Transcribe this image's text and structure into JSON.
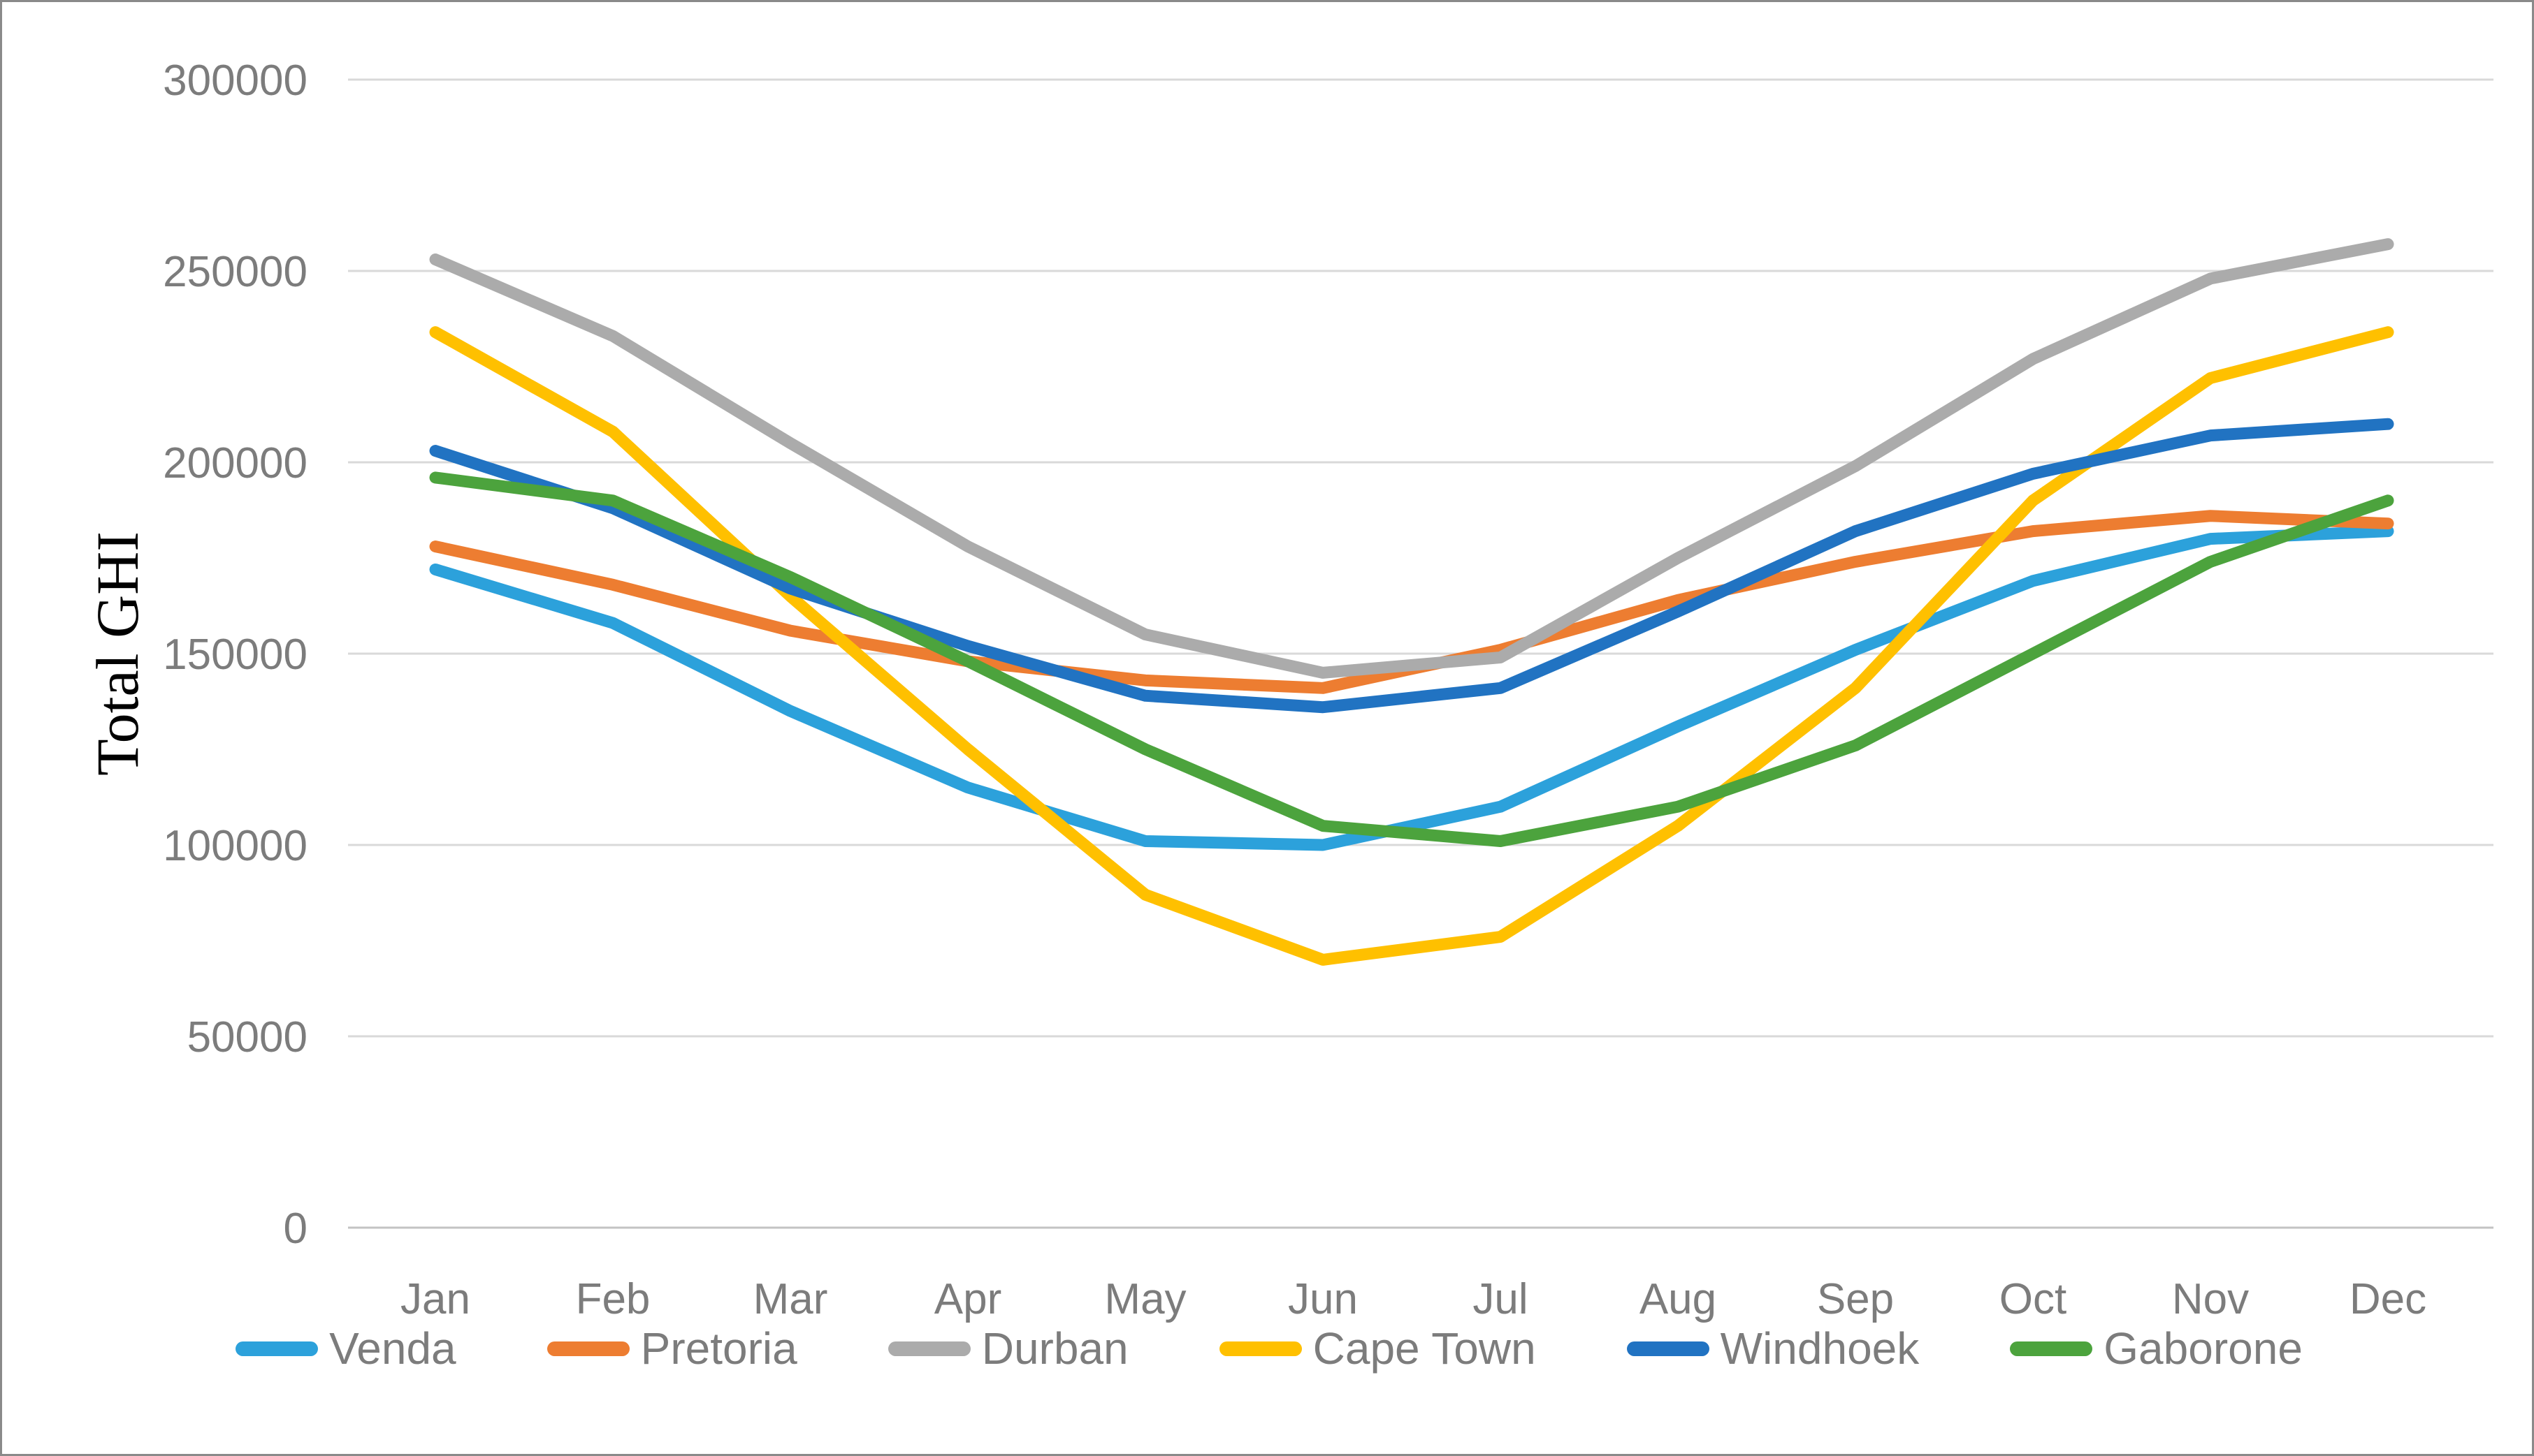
{
  "chart_data": {
    "type": "line",
    "title": "",
    "xlabel": "",
    "ylabel": "Total GHI",
    "ylim": [
      0,
      300000
    ],
    "yticks": [
      0,
      50000,
      100000,
      150000,
      200000,
      250000,
      300000
    ],
    "grid": "horizontal-only",
    "legend_position": "bottom",
    "categories": [
      "Jan",
      "Feb",
      "Mar",
      "Apr",
      "May",
      "Jun",
      "Jul",
      "Aug",
      "Sep",
      "Oct",
      "Nov",
      "Dec"
    ],
    "series": [
      {
        "name": "Venda",
        "color": "#2CA1DB",
        "values": [
          172000,
          158000,
          135000,
          115000,
          101000,
          100000,
          110000,
          131000,
          151000,
          169000,
          180000,
          182000
        ]
      },
      {
        "name": "Pretoria",
        "color": "#ED7D31",
        "values": [
          178000,
          168000,
          156000,
          148000,
          143000,
          141000,
          151000,
          164000,
          174000,
          182000,
          186000,
          184000
        ]
      },
      {
        "name": "Durban",
        "color": "#ABABAB",
        "values": [
          253000,
          233000,
          205000,
          178000,
          155000,
          145000,
          149000,
          175000,
          199000,
          227000,
          248000,
          257000
        ]
      },
      {
        "name": "Cape Town",
        "color": "#FFC000",
        "values": [
          234000,
          208000,
          165000,
          125000,
          87000,
          70000,
          76000,
          105000,
          141000,
          190000,
          222000,
          234000
        ]
      },
      {
        "name": "Windhoek",
        "color": "#2173C2",
        "values": [
          203000,
          188000,
          167000,
          152000,
          139000,
          136000,
          141000,
          161000,
          182000,
          197000,
          207000,
          210000
        ]
      },
      {
        "name": "Gaborone",
        "color": "#4CA33D",
        "values": [
          196000,
          190000,
          170000,
          148000,
          125000,
          105000,
          101000,
          110000,
          126000,
          150000,
          174000,
          190000
        ]
      }
    ]
  }
}
